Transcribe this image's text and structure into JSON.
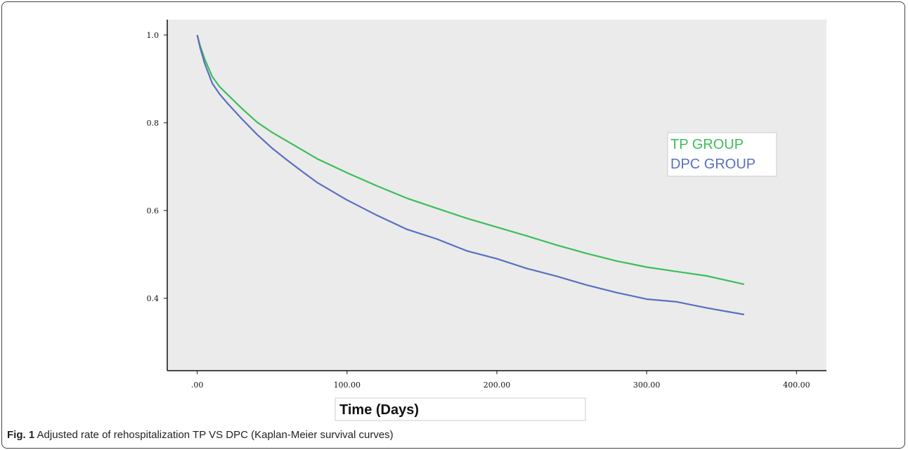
{
  "caption": {
    "label": "Fig. 1",
    "text": "Adjusted rate of rehospitalization TP VS DPC (Kaplan-Meier survival curves)"
  },
  "colors": {
    "plot_background": "#ebebeb",
    "tp_series": "#3dbd5a",
    "dpc_series": "#5a6fc0",
    "axis": "#111111"
  },
  "chart_data": {
    "type": "line",
    "title": "",
    "xlabel": "Time (Days)",
    "ylabel": "",
    "xlim": [
      -20,
      420
    ],
    "ylim": [
      0.235,
      1.035
    ],
    "grid": false,
    "legend": "right",
    "x_ticks": [
      0,
      100,
      200,
      300,
      400
    ],
    "x_tick_labels": [
      ".00",
      "100.00",
      "200.00",
      "300.00",
      "400.00"
    ],
    "y_ticks": [
      0.4,
      0.6,
      0.8,
      1.0
    ],
    "y_tick_labels": [
      "0.4",
      "0.6",
      "0.8",
      "1.0"
    ],
    "series": [
      {
        "name": "TP GROUP",
        "x": [
          0,
          2,
          5,
          10,
          15,
          20,
          30,
          40,
          50,
          60,
          70,
          80,
          90,
          100,
          120,
          140,
          160,
          180,
          200,
          220,
          240,
          260,
          280,
          300,
          320,
          340,
          365
        ],
        "y": [
          1.0,
          0.975,
          0.945,
          0.905,
          0.882,
          0.865,
          0.832,
          0.801,
          0.778,
          0.758,
          0.738,
          0.718,
          0.702,
          0.686,
          0.656,
          0.628,
          0.605,
          0.582,
          0.562,
          0.542,
          0.521,
          0.502,
          0.485,
          0.471,
          0.461,
          0.451,
          0.432
        ]
      },
      {
        "name": "DPC GROUP",
        "x": [
          0,
          2,
          5,
          10,
          15,
          20,
          30,
          40,
          50,
          60,
          70,
          80,
          90,
          100,
          120,
          140,
          160,
          180,
          200,
          220,
          240,
          260,
          280,
          300,
          320,
          340,
          365
        ],
        "y": [
          1.0,
          0.97,
          0.935,
          0.89,
          0.865,
          0.845,
          0.808,
          0.773,
          0.742,
          0.715,
          0.689,
          0.664,
          0.644,
          0.624,
          0.589,
          0.557,
          0.535,
          0.508,
          0.49,
          0.468,
          0.45,
          0.43,
          0.413,
          0.398,
          0.392,
          0.378,
          0.363
        ]
      }
    ]
  }
}
